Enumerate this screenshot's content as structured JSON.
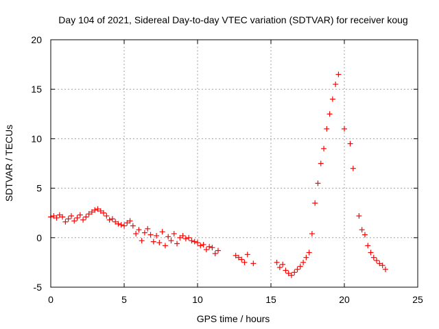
{
  "chart_data": {
    "type": "scatter",
    "title": "Day 104 of 2021, Sidereal Day-to-day VTEC variation (SDTVAR) for receiver koug",
    "xlabel": "GPS time / hours",
    "ylabel": "SDTVAR / TECUs",
    "xlim": [
      0,
      25
    ],
    "ylim": [
      -5,
      20
    ],
    "xticks": [
      "0",
      "5",
      "10",
      "15",
      "20",
      "25"
    ],
    "yticks": [
      "-5",
      "0",
      "5",
      "10",
      "15",
      "20"
    ],
    "grid": true,
    "marker": "+",
    "color": "#ff0000",
    "series": [
      {
        "name": "SDTVAR",
        "x": [
          0.0,
          0.2,
          0.4,
          0.6,
          0.8,
          1.0,
          1.2,
          1.4,
          1.6,
          1.8,
          2.0,
          2.2,
          2.4,
          2.6,
          2.8,
          3.0,
          3.2,
          3.4,
          3.6,
          3.8,
          4.0,
          4.2,
          4.4,
          4.6,
          4.8,
          5.0,
          5.2,
          5.4,
          5.6,
          5.8,
          6.0,
          6.2,
          6.4,
          6.6,
          6.8,
          7.0,
          7.2,
          7.4,
          7.6,
          7.8,
          8.0,
          8.2,
          8.4,
          8.6,
          8.8,
          9.0,
          9.2,
          9.4,
          9.6,
          9.8,
          10.0,
          10.2,
          10.4,
          10.6,
          10.8,
          11.0,
          11.2,
          11.4,
          12.6,
          12.8,
          13.0,
          13.2,
          13.4,
          13.8,
          15.4,
          15.6,
          15.8,
          16.0,
          16.2,
          16.4,
          16.6,
          16.8,
          17.0,
          17.2,
          17.4,
          17.6,
          17.8,
          18.0,
          18.2,
          18.4,
          18.6,
          18.8,
          19.0,
          19.2,
          19.4,
          19.6,
          20.0,
          20.4,
          20.6,
          21.0,
          21.2,
          21.4,
          21.6,
          21.8,
          22.0,
          22.2,
          22.4,
          22.6,
          22.8
        ],
        "y": [
          2.1,
          2.2,
          2.0,
          2.3,
          2.1,
          1.6,
          1.9,
          2.2,
          1.7,
          2.0,
          2.3,
          1.8,
          2.1,
          2.4,
          2.6,
          2.8,
          2.9,
          2.7,
          2.5,
          2.2,
          1.8,
          1.9,
          1.6,
          1.4,
          1.3,
          1.2,
          1.5,
          1.7,
          1.2,
          0.4,
          0.8,
          -0.3,
          0.5,
          0.9,
          0.3,
          -0.4,
          0.2,
          -0.5,
          0.6,
          -0.8,
          0.1,
          -0.3,
          0.4,
          -0.6,
          0.0,
          0.2,
          -0.1,
          0.0,
          -0.3,
          -0.4,
          -0.5,
          -0.8,
          -0.7,
          -1.2,
          -0.9,
          -1.0,
          -1.6,
          -1.3,
          -1.8,
          -2.0,
          -2.2,
          -2.5,
          -1.7,
          -2.6,
          -2.5,
          -3.0,
          -2.7,
          -3.3,
          -3.6,
          -3.8,
          -3.5,
          -3.2,
          -2.9,
          -2.5,
          -2.0,
          -1.5,
          0.4,
          3.5,
          5.5,
          7.5,
          9.0,
          11.0,
          12.5,
          14.0,
          15.5,
          16.5,
          11.0,
          9.5,
          7.0,
          2.2,
          0.8,
          0.3,
          -0.8,
          -1.5,
          -2.0,
          -2.3,
          -2.6,
          -2.8,
          -3.2
        ]
      }
    ]
  }
}
